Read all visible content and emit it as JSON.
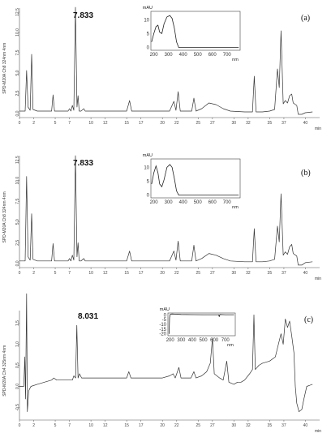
{
  "chart_data": [
    {
      "type": "line",
      "panel_label": "(a)",
      "peak_label": "7.833",
      "ylabel": "SPD-M20A Ch8 324nm 4nm",
      "xunit": "min",
      "yticks": [
        "0.0",
        "2.5",
        "5.0",
        "7.5",
        "10.0",
        "12.5"
      ],
      "xticks": [
        "0",
        "2",
        "5",
        "7",
        "10",
        "12",
        "15",
        "17",
        "20",
        "22",
        "25",
        "27",
        "30",
        "32",
        "35",
        "37",
        "40"
      ],
      "xlim": [
        0,
        42
      ],
      "ylim": [
        -0.5,
        13
      ],
      "series": [
        {
          "points": [
            [
              0,
              0.3
            ],
            [
              0.8,
              0.3
            ],
            [
              1,
              5.3
            ],
            [
              1.2,
              0.8
            ],
            [
              1.5,
              0.4
            ],
            [
              1.7,
              7.3
            ],
            [
              1.9,
              0.5
            ],
            [
              2.5,
              0.3
            ],
            [
              4.5,
              0.3
            ],
            [
              4.7,
              2.3
            ],
            [
              4.9,
              0.3
            ],
            [
              6.8,
              0.3
            ],
            [
              7.0,
              0.6
            ],
            [
              7.2,
              0.3
            ],
            [
              7.4,
              1.0
            ],
            [
              7.6,
              0.4
            ],
            [
              7.833,
              13.1
            ],
            [
              8.05,
              0.8
            ],
            [
              8.2,
              2.2
            ],
            [
              8.35,
              0.3
            ],
            [
              8.6,
              0.3
            ],
            [
              9.0,
              0.6
            ],
            [
              9.2,
              0.3
            ],
            [
              15,
              0.3
            ],
            [
              15.4,
              1.6
            ],
            [
              15.7,
              0.3
            ],
            [
              21,
              0.3
            ],
            [
              21.6,
              1.5
            ],
            [
              21.9,
              0.4
            ],
            [
              22.2,
              2.7
            ],
            [
              22.5,
              0.3
            ],
            [
              24.1,
              0.3
            ],
            [
              24.4,
              1.9
            ],
            [
              24.7,
              0.3
            ],
            [
              25.5,
              0.6
            ],
            [
              26.5,
              1.3
            ],
            [
              27.5,
              1.1
            ],
            [
              28.5,
              0.6
            ],
            [
              29.5,
              0.3
            ],
            [
              31.5,
              0.2
            ],
            [
              32.6,
              0.2
            ],
            [
              32.85,
              4.6
            ],
            [
              33.1,
              0.2
            ],
            [
              34,
              0.2
            ],
            [
              35,
              0.3
            ],
            [
              35.7,
              0.5
            ],
            [
              36.1,
              5.5
            ],
            [
              36.35,
              3.2
            ],
            [
              36.6,
              10.2
            ],
            [
              36.9,
              1.2
            ],
            [
              37.2,
              1.6
            ],
            [
              37.5,
              1.3
            ],
            [
              37.8,
              2.2
            ],
            [
              38.1,
              2.4
            ],
            [
              38.3,
              1.3
            ],
            [
              38.8,
              1.0
            ],
            [
              39.0,
              -0.1
            ],
            [
              39.5,
              -0.1
            ],
            [
              40,
              0.1
            ],
            [
              41,
              0.2
            ]
          ]
        }
      ]
    },
    {
      "type": "line",
      "panel_label": "(b)",
      "peak_label": "7.833",
      "ylabel": "SPD-M20A Ch8 324nm 4nm",
      "xunit": "min",
      "yticks": [
        "0.0",
        "2.5",
        "5.0",
        "7.5",
        "10.0",
        "12.5"
      ],
      "xticks": [
        "0",
        "2",
        "5",
        "7",
        "10",
        "12",
        "15",
        "17",
        "20",
        "22",
        "25",
        "27",
        "30",
        "32",
        "35",
        "37",
        "40"
      ],
      "xlim": [
        0,
        42
      ],
      "ylim": [
        -0.5,
        13
      ],
      "series": [
        {
          "points": [
            [
              0,
              0.3
            ],
            [
              0.8,
              0.3
            ],
            [
              1,
              10.5
            ],
            [
              1.2,
              0.8
            ],
            [
              1.5,
              0.4
            ],
            [
              1.7,
              6.0
            ],
            [
              1.9,
              0.5
            ],
            [
              2.5,
              0.3
            ],
            [
              4.5,
              0.3
            ],
            [
              4.7,
              2.4
            ],
            [
              4.9,
              0.3
            ],
            [
              6.8,
              0.3
            ],
            [
              7.0,
              0.6
            ],
            [
              7.2,
              0.3
            ],
            [
              7.4,
              1.0
            ],
            [
              7.6,
              0.4
            ],
            [
              7.833,
              13.0
            ],
            [
              8.05,
              0.8
            ],
            [
              8.2,
              2.5
            ],
            [
              8.35,
              0.3
            ],
            [
              8.6,
              0.3
            ],
            [
              9.0,
              0.6
            ],
            [
              9.2,
              0.3
            ],
            [
              15,
              0.3
            ],
            [
              15.4,
              1.5
            ],
            [
              15.7,
              0.3
            ],
            [
              21,
              0.3
            ],
            [
              21.6,
              1.5
            ],
            [
              21.9,
              0.4
            ],
            [
              22.2,
              2.7
            ],
            [
              22.5,
              0.3
            ],
            [
              24.1,
              0.3
            ],
            [
              24.4,
              2.2
            ],
            [
              24.7,
              0.3
            ],
            [
              25.5,
              0.6
            ],
            [
              26.5,
              1.2
            ],
            [
              27.5,
              1.0
            ],
            [
              28.5,
              0.6
            ],
            [
              29.5,
              0.3
            ],
            [
              31.5,
              0.2
            ],
            [
              32.6,
              0.2
            ],
            [
              32.85,
              4.2
            ],
            [
              33.1,
              0.2
            ],
            [
              34,
              0.2
            ],
            [
              35,
              0.3
            ],
            [
              35.7,
              0.5
            ],
            [
              36.1,
              4.5
            ],
            [
              36.35,
              2.6
            ],
            [
              36.6,
              8.4
            ],
            [
              36.9,
              1.0
            ],
            [
              37.2,
              1.4
            ],
            [
              37.5,
              1.1
            ],
            [
              37.8,
              2.0
            ],
            [
              38.1,
              2.3
            ],
            [
              38.3,
              1.2
            ],
            [
              38.8,
              0.9
            ],
            [
              39.0,
              -0.2
            ],
            [
              39.5,
              -0.2
            ],
            [
              40,
              0.1
            ],
            [
              41,
              0.2
            ]
          ]
        }
      ]
    },
    {
      "type": "line",
      "panel_label": "(c)",
      "peak_label": "8.031",
      "ylabel": "SPD-M20A Ch4 325nm 4nm",
      "xunit": "min",
      "yticks": [
        "-0.5",
        "0.0",
        "0.5",
        "1.0",
        "1.5"
      ],
      "xticks": [
        "0",
        "2",
        "5",
        "7",
        "10",
        "12",
        "15",
        "17",
        "20",
        "22",
        "25",
        "27",
        "30",
        "32",
        "35",
        "37",
        "40"
      ],
      "xlim": [
        0,
        42
      ],
      "ylim": [
        -0.8,
        1.8
      ],
      "series": [
        {
          "points": [
            [
              0,
              0.0
            ],
            [
              0.6,
              0.0
            ],
            [
              0.75,
              0.7
            ],
            [
              0.85,
              -0.3
            ],
            [
              1.0,
              2.2
            ],
            [
              1.1,
              -0.6
            ],
            [
              1.3,
              -0.1
            ],
            [
              1.6,
              0.0
            ],
            [
              2.5,
              0.05
            ],
            [
              3.5,
              0.1
            ],
            [
              4.5,
              0.15
            ],
            [
              4.8,
              0.2
            ],
            [
              5.2,
              0.15
            ],
            [
              6,
              0.15
            ],
            [
              7.4,
              0.15
            ],
            [
              7.6,
              0.25
            ],
            [
              7.85,
              0.2
            ],
            [
              8.031,
              1.45
            ],
            [
              8.2,
              0.2
            ],
            [
              8.4,
              0.3
            ],
            [
              8.7,
              0.2
            ],
            [
              9.5,
              0.2
            ],
            [
              11,
              0.2
            ],
            [
              13,
              0.2
            ],
            [
              15,
              0.2
            ],
            [
              15.3,
              0.35
            ],
            [
              15.6,
              0.2
            ],
            [
              16.5,
              0.2
            ],
            [
              18,
              0.2
            ],
            [
              20,
              0.2
            ],
            [
              21,
              0.25
            ],
            [
              21.5,
              0.3
            ],
            [
              21.8,
              0.2
            ],
            [
              22.3,
              0.45
            ],
            [
              22.6,
              0.2
            ],
            [
              24,
              0.2
            ],
            [
              24.4,
              0.35
            ],
            [
              24.7,
              0.2
            ],
            [
              25.5,
              0.25
            ],
            [
              26.2,
              0.35
            ],
            [
              26.7,
              0.55
            ],
            [
              27.0,
              1.15
            ],
            [
              27.25,
              0.3
            ],
            [
              28,
              0.2
            ],
            [
              28.5,
              0.15
            ],
            [
              29.0,
              0.6
            ],
            [
              29.3,
              0.1
            ],
            [
              30,
              0.05
            ],
            [
              30.5,
              0.1
            ],
            [
              31,
              0.1
            ],
            [
              31.5,
              0.15
            ],
            [
              32.2,
              0.3
            ],
            [
              32.6,
              0.4
            ],
            [
              32.8,
              1.7
            ],
            [
              33.0,
              0.4
            ],
            [
              33.5,
              0.5
            ],
            [
              34,
              0.55
            ],
            [
              35,
              0.6
            ],
            [
              35.8,
              0.7
            ],
            [
              36.3,
              1.05
            ],
            [
              36.6,
              1.25
            ],
            [
              36.9,
              1.0
            ],
            [
              37.2,
              1.6
            ],
            [
              37.5,
              1.4
            ],
            [
              37.8,
              1.55
            ],
            [
              38.1,
              1.2
            ],
            [
              38.4,
              0.8
            ],
            [
              38.6,
              0.0
            ],
            [
              38.8,
              -0.4
            ],
            [
              39.1,
              -0.6
            ],
            [
              39.5,
              -0.55
            ],
            [
              39.8,
              -0.3
            ],
            [
              40.2,
              0.0
            ],
            [
              41,
              0.05
            ]
          ]
        }
      ]
    }
  ],
  "insets": [
    {
      "unit_top": "mAU",
      "unit_x": "nm",
      "yticks": [
        "0",
        "5",
        "10"
      ],
      "xticks": [
        "200",
        "300",
        "400",
        "500",
        "600",
        "700"
      ],
      "xlim": [
        180,
        790
      ],
      "ylim": [
        -1,
        13
      ],
      "points": [
        [
          185,
          2
        ],
        [
          200,
          5
        ],
        [
          215,
          7.5
        ],
        [
          228,
          8
        ],
        [
          240,
          5.5
        ],
        [
          255,
          5
        ],
        [
          270,
          8.5
        ],
        [
          290,
          11
        ],
        [
          310,
          11.5
        ],
        [
          325,
          10.5
        ],
        [
          340,
          7
        ],
        [
          355,
          2
        ],
        [
          370,
          0
        ],
        [
          400,
          0
        ],
        [
          450,
          0
        ],
        [
          500,
          0
        ],
        [
          550,
          0
        ],
        [
          600,
          0
        ],
        [
          650,
          0
        ],
        [
          700,
          0
        ],
        [
          780,
          0
        ]
      ]
    },
    {
      "unit_top": "mAU",
      "unit_x": "nm",
      "yticks": [
        "0",
        "5",
        "10"
      ],
      "xticks": [
        "200",
        "300",
        "400",
        "500",
        "600",
        "700"
      ],
      "xlim": [
        180,
        790
      ],
      "ylim": [
        -1,
        13
      ],
      "points": [
        [
          185,
          4
        ],
        [
          200,
          8
        ],
        [
          215,
          10.5
        ],
        [
          228,
          8
        ],
        [
          240,
          4
        ],
        [
          255,
          3
        ],
        [
          270,
          5.5
        ],
        [
          290,
          10
        ],
        [
          310,
          11
        ],
        [
          325,
          10
        ],
        [
          340,
          6
        ],
        [
          355,
          1.5
        ],
        [
          370,
          0
        ],
        [
          400,
          0
        ],
        [
          450,
          0
        ],
        [
          500,
          0
        ],
        [
          550,
          0
        ],
        [
          600,
          0
        ],
        [
          650,
          0
        ],
        [
          700,
          0
        ],
        [
          780,
          0
        ]
      ]
    },
    {
      "unit_top": "mAU",
      "unit_x": "nm",
      "yticks": [
        "0",
        "-5",
        "-10",
        "-15",
        "-20"
      ],
      "xticks": [
        "200",
        "300",
        "400",
        "500",
        "600",
        "700"
      ],
      "xlim": [
        180,
        790
      ],
      "ylim": [
        -22,
        2
      ],
      "points": [
        [
          190,
          -20
        ],
        [
          195,
          -3
        ],
        [
          200,
          0.5
        ],
        [
          215,
          1
        ],
        [
          240,
          0.8
        ],
        [
          300,
          0.5
        ],
        [
          400,
          0.3
        ],
        [
          500,
          0.2
        ],
        [
          600,
          0.2
        ],
        [
          640,
          0.2
        ],
        [
          645,
          -2
        ],
        [
          650,
          0.5
        ],
        [
          700,
          0.2
        ],
        [
          780,
          0.2
        ]
      ]
    }
  ]
}
